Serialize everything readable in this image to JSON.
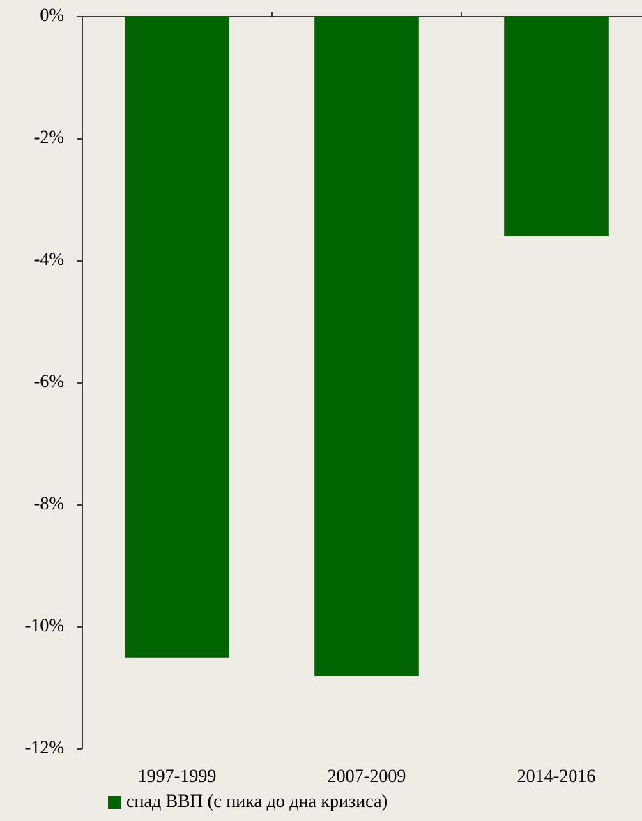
{
  "chart_data": {
    "type": "bar",
    "categories": [
      "1997-1999",
      "2007-2009",
      "2014-2016"
    ],
    "series": [
      {
        "name": "спад ВВП (с пика до дна кризиса)",
        "color": "#006400",
        "values": [
          -10.5,
          -10.8,
          -3.6
        ]
      }
    ],
    "ylim": [
      -12,
      0
    ],
    "yticks": [
      {
        "value": 0,
        "label": "0%"
      },
      {
        "value": -2,
        "label": "-2%"
      },
      {
        "value": -4,
        "label": "-4%"
      },
      {
        "value": -6,
        "label": "-6%"
      },
      {
        "value": -8,
        "label": "-8%"
      },
      {
        "value": -10,
        "label": "-10%"
      },
      {
        "value": -12,
        "label": "-12%"
      }
    ],
    "legend": "bottom-left",
    "grid": false
  }
}
